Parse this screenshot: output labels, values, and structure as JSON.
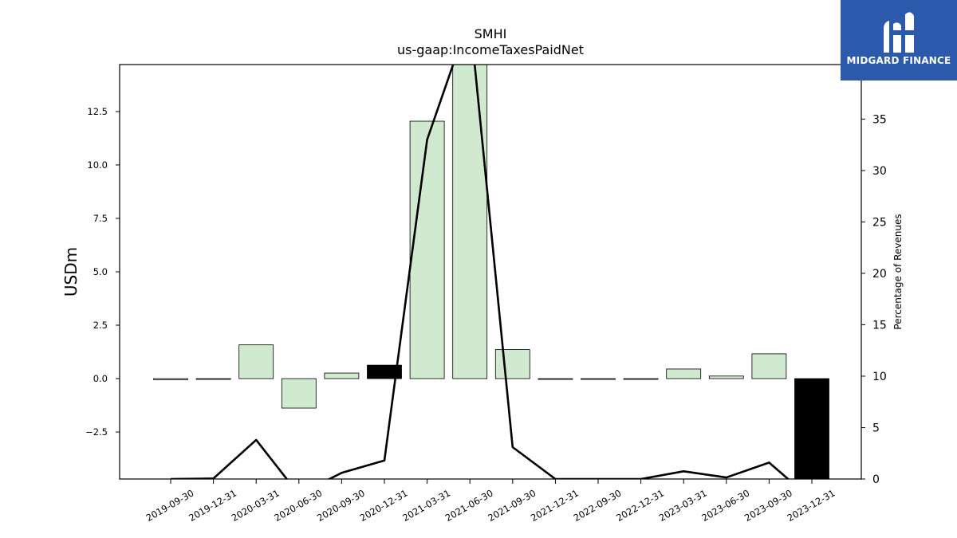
{
  "logo": {
    "text": "MIDGARD FINANCE",
    "background": "#2b5aad"
  },
  "chart_data": {
    "type": "bar",
    "title": "SMHI",
    "subtitle": "us-gaap:IncomeTaxesPaidNet",
    "ylabel": "USDm",
    "y2label": "Percentage of Revenues",
    "categories": [
      "2019-09-30",
      "2019-12-31",
      "2020-03-31",
      "2020-06-30",
      "2020-09-30",
      "2020-12-31",
      "2021-03-31",
      "2021-06-30",
      "2021-09-30",
      "2021-12-31",
      "2022-09-30",
      "2022-12-31",
      "2023-03-31",
      "2023-06-30",
      "2023-09-30",
      "2023-12-31"
    ],
    "values": [
      -0.05,
      -0.01,
      1.58,
      -1.38,
      0.26,
      0.63,
      12.05,
      14.8,
      1.36,
      -0.01,
      -0.01,
      -0.01,
      0.45,
      0.12,
      1.16,
      -4.8
    ],
    "bar_colors": [
      "#d0ead0",
      "#d0ead0",
      "#d0ead0",
      "#d0ead0",
      "#d0ead0",
      "#000000",
      "#d0ead0",
      "#d0ead0",
      "#d0ead0",
      "#d0ead0",
      "#d0ead0",
      "#d0ead0",
      "#d0ead0",
      "#d0ead0",
      "#d0ead0",
      "#000000"
    ],
    "ylim": [
      -4.7,
      14.7
    ],
    "yticks": [
      -2.5,
      0.0,
      2.5,
      5.0,
      7.5,
      10.0,
      12.5
    ],
    "ytick_labels": [
      "−2.5",
      "0.0",
      "2.5",
      "5.0",
      "7.5",
      "10.0",
      "12.5"
    ],
    "line_series": {
      "axis": "right",
      "values": [
        0.0,
        0.05,
        3.8,
        -1.5,
        0.6,
        1.8,
        33.0,
        45.0,
        3.1,
        0.0,
        0.0,
        0.0,
        0.75,
        0.15,
        1.6,
        -2.0
      ]
    },
    "y2lim": [
      0,
      40.3
    ],
    "y2ticks": [
      0,
      5,
      10,
      15,
      20,
      25,
      30,
      35
    ],
    "grid": false
  }
}
